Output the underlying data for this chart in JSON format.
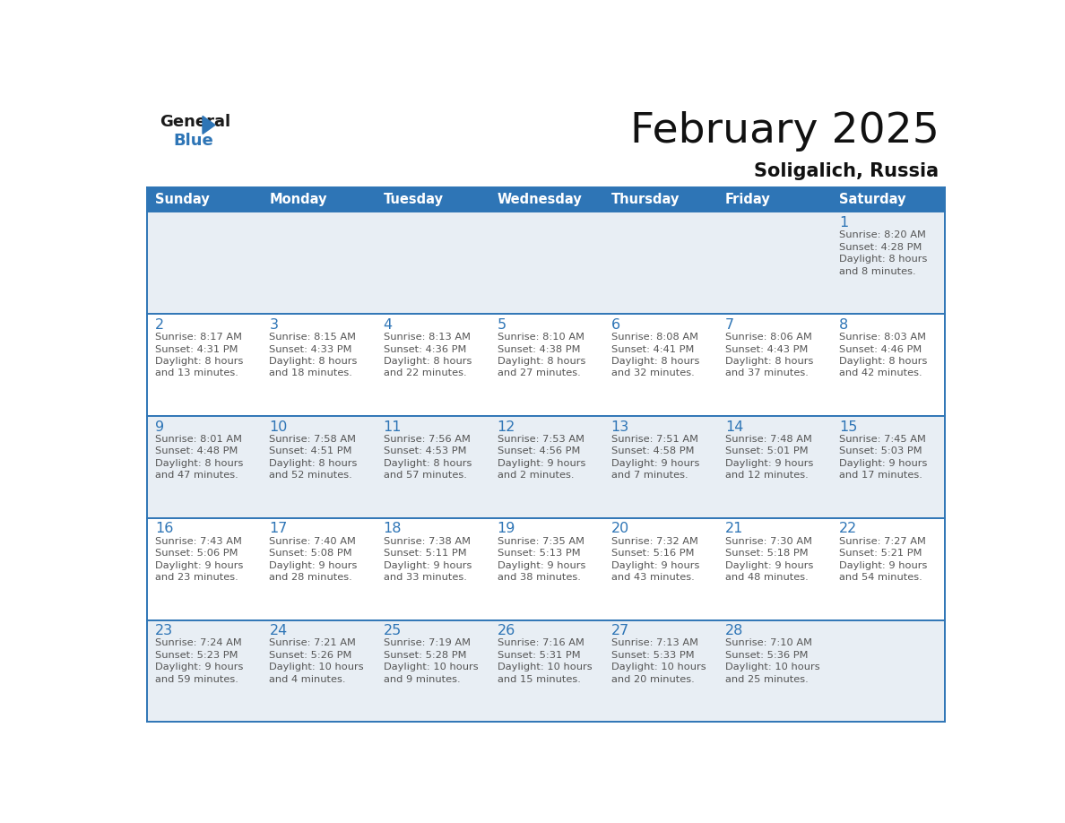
{
  "title": "February 2025",
  "subtitle": "Soligalich, Russia",
  "header_bg": "#2e75b6",
  "header_text_color": "#ffffff",
  "day_names": [
    "Sunday",
    "Monday",
    "Tuesday",
    "Wednesday",
    "Thursday",
    "Friday",
    "Saturday"
  ],
  "bg_color": "#ffffff",
  "row_bg_even": "#e8eef4",
  "row_bg_odd": "#ffffff",
  "divider_color": "#2e75b6",
  "text_color": "#555555",
  "day_num_color": "#2e75b6",
  "calendar": [
    [
      null,
      null,
      null,
      null,
      null,
      null,
      {
        "day": 1,
        "sunrise": "8:20 AM",
        "sunset": "4:28 PM",
        "daylight_h": "8 hours",
        "daylight_m": "and 8 minutes."
      }
    ],
    [
      {
        "day": 2,
        "sunrise": "8:17 AM",
        "sunset": "4:31 PM",
        "daylight_h": "8 hours",
        "daylight_m": "and 13 minutes."
      },
      {
        "day": 3,
        "sunrise": "8:15 AM",
        "sunset": "4:33 PM",
        "daylight_h": "8 hours",
        "daylight_m": "and 18 minutes."
      },
      {
        "day": 4,
        "sunrise": "8:13 AM",
        "sunset": "4:36 PM",
        "daylight_h": "8 hours",
        "daylight_m": "and 22 minutes."
      },
      {
        "day": 5,
        "sunrise": "8:10 AM",
        "sunset": "4:38 PM",
        "daylight_h": "8 hours",
        "daylight_m": "and 27 minutes."
      },
      {
        "day": 6,
        "sunrise": "8:08 AM",
        "sunset": "4:41 PM",
        "daylight_h": "8 hours",
        "daylight_m": "and 32 minutes."
      },
      {
        "day": 7,
        "sunrise": "8:06 AM",
        "sunset": "4:43 PM",
        "daylight_h": "8 hours",
        "daylight_m": "and 37 minutes."
      },
      {
        "day": 8,
        "sunrise": "8:03 AM",
        "sunset": "4:46 PM",
        "daylight_h": "8 hours",
        "daylight_m": "and 42 minutes."
      }
    ],
    [
      {
        "day": 9,
        "sunrise": "8:01 AM",
        "sunset": "4:48 PM",
        "daylight_h": "8 hours",
        "daylight_m": "and 47 minutes."
      },
      {
        "day": 10,
        "sunrise": "7:58 AM",
        "sunset": "4:51 PM",
        "daylight_h": "8 hours",
        "daylight_m": "and 52 minutes."
      },
      {
        "day": 11,
        "sunrise": "7:56 AM",
        "sunset": "4:53 PM",
        "daylight_h": "8 hours",
        "daylight_m": "and 57 minutes."
      },
      {
        "day": 12,
        "sunrise": "7:53 AM",
        "sunset": "4:56 PM",
        "daylight_h": "9 hours",
        "daylight_m": "and 2 minutes."
      },
      {
        "day": 13,
        "sunrise": "7:51 AM",
        "sunset": "4:58 PM",
        "daylight_h": "9 hours",
        "daylight_m": "and 7 minutes."
      },
      {
        "day": 14,
        "sunrise": "7:48 AM",
        "sunset": "5:01 PM",
        "daylight_h": "9 hours",
        "daylight_m": "and 12 minutes."
      },
      {
        "day": 15,
        "sunrise": "7:45 AM",
        "sunset": "5:03 PM",
        "daylight_h": "9 hours",
        "daylight_m": "and 17 minutes."
      }
    ],
    [
      {
        "day": 16,
        "sunrise": "7:43 AM",
        "sunset": "5:06 PM",
        "daylight_h": "9 hours",
        "daylight_m": "and 23 minutes."
      },
      {
        "day": 17,
        "sunrise": "7:40 AM",
        "sunset": "5:08 PM",
        "daylight_h": "9 hours",
        "daylight_m": "and 28 minutes."
      },
      {
        "day": 18,
        "sunrise": "7:38 AM",
        "sunset": "5:11 PM",
        "daylight_h": "9 hours",
        "daylight_m": "and 33 minutes."
      },
      {
        "day": 19,
        "sunrise": "7:35 AM",
        "sunset": "5:13 PM",
        "daylight_h": "9 hours",
        "daylight_m": "and 38 minutes."
      },
      {
        "day": 20,
        "sunrise": "7:32 AM",
        "sunset": "5:16 PM",
        "daylight_h": "9 hours",
        "daylight_m": "and 43 minutes."
      },
      {
        "day": 21,
        "sunrise": "7:30 AM",
        "sunset": "5:18 PM",
        "daylight_h": "9 hours",
        "daylight_m": "and 48 minutes."
      },
      {
        "day": 22,
        "sunrise": "7:27 AM",
        "sunset": "5:21 PM",
        "daylight_h": "9 hours",
        "daylight_m": "and 54 minutes."
      }
    ],
    [
      {
        "day": 23,
        "sunrise": "7:24 AM",
        "sunset": "5:23 PM",
        "daylight_h": "9 hours",
        "daylight_m": "and 59 minutes."
      },
      {
        "day": 24,
        "sunrise": "7:21 AM",
        "sunset": "5:26 PM",
        "daylight_h": "10 hours",
        "daylight_m": "and 4 minutes."
      },
      {
        "day": 25,
        "sunrise": "7:19 AM",
        "sunset": "5:28 PM",
        "daylight_h": "10 hours",
        "daylight_m": "and 9 minutes."
      },
      {
        "day": 26,
        "sunrise": "7:16 AM",
        "sunset": "5:31 PM",
        "daylight_h": "10 hours",
        "daylight_m": "and 15 minutes."
      },
      {
        "day": 27,
        "sunrise": "7:13 AM",
        "sunset": "5:33 PM",
        "daylight_h": "10 hours",
        "daylight_m": "and 20 minutes."
      },
      {
        "day": 28,
        "sunrise": "7:10 AM",
        "sunset": "5:36 PM",
        "daylight_h": "10 hours",
        "daylight_m": "and 25 minutes."
      },
      null
    ]
  ]
}
